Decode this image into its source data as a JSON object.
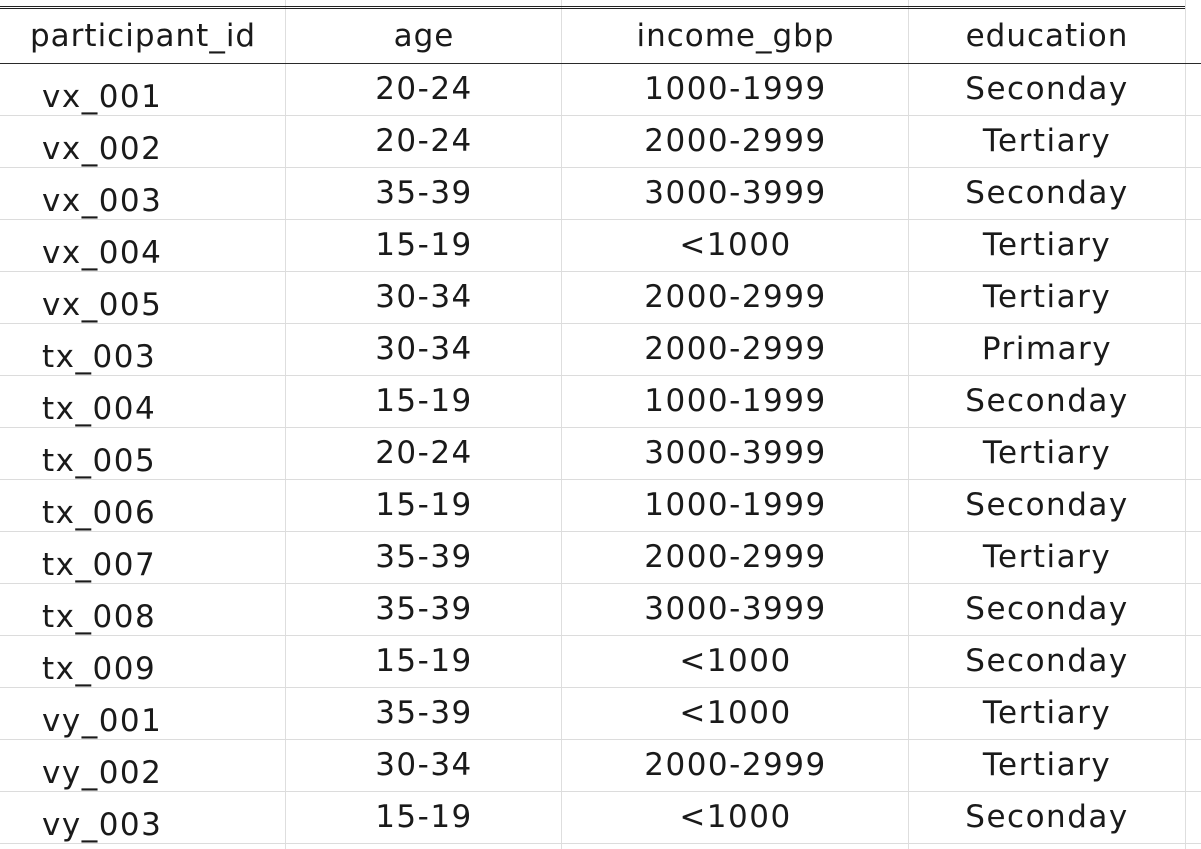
{
  "table": {
    "columns": [
      "participant_id",
      "age",
      "income_gbp",
      "education"
    ],
    "rows": [
      [
        "vx_001",
        "20-24",
        "1000-1999",
        "Seconday"
      ],
      [
        "vx_002",
        "20-24",
        "2000-2999",
        "Tertiary"
      ],
      [
        "vx_003",
        "35-39",
        "3000-3999",
        "Seconday"
      ],
      [
        "vx_004",
        "15-19",
        "<1000",
        "Tertiary"
      ],
      [
        "vx_005",
        "30-34",
        "2000-2999",
        "Tertiary"
      ],
      [
        "tx_003",
        "30-34",
        "2000-2999",
        "Primary"
      ],
      [
        "tx_004",
        "15-19",
        "1000-1999",
        "Seconday"
      ],
      [
        "tx_005",
        "20-24",
        "3000-3999",
        "Tertiary"
      ],
      [
        "tx_006",
        "15-19",
        "1000-1999",
        "Seconday"
      ],
      [
        "tx_007",
        "35-39",
        "2000-2999",
        "Tertiary"
      ],
      [
        "tx_008",
        "35-39",
        "3000-3999",
        "Seconday"
      ],
      [
        "tx_009",
        "15-19",
        "<1000",
        "Seconday"
      ],
      [
        "vy_001",
        "35-39",
        "<1000",
        "Tertiary"
      ],
      [
        "vy_002",
        "30-34",
        "2000-2999",
        "Tertiary"
      ],
      [
        "vy_003",
        "15-19",
        "<1000",
        "Seconday"
      ]
    ]
  }
}
